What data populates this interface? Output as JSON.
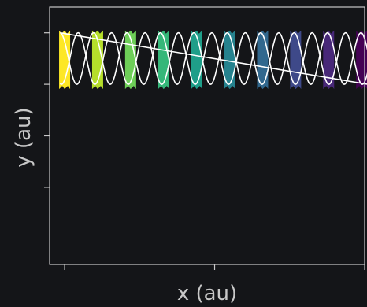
{
  "chart_data": {
    "type": "line",
    "title": "",
    "xlabel": "x (au)",
    "ylabel": "y (au)",
    "xlim": [
      -0.1,
      2.0
    ],
    "ylim": [
      -1.75,
      0.75
    ],
    "x_ticks": [
      0,
      1,
      2
    ],
    "y_ticks": [
      -1,
      -0.5,
      0,
      0.5
    ],
    "x_tick_labels": [
      "",
      "",
      ""
    ],
    "y_tick_labels": [
      "",
      "",
      "",
      ""
    ],
    "grid": false,
    "legend": "none",
    "colormap": [
      "#fde725",
      "#b5de2b",
      "#6ece58",
      "#35b779",
      "#1f9e89",
      "#26828e",
      "#31688e",
      "#3e4989",
      "#482878",
      "#440154"
    ],
    "line_color": "#ffffff",
    "background": "#141518",
    "axis_color": "#c8c8c8",
    "label_color": "#c8c8c8",
    "helix": {
      "turns": 9.2,
      "x_start": -0.03,
      "x_end": 2.02,
      "y_top": 0.5,
      "y_bottom": 0.0,
      "envelope_start_y": 0.5,
      "envelope_end_y": 0.0,
      "segments": [
        {
          "x_center": 0.0,
          "color": "#fde725"
        },
        {
          "x_center": 0.22,
          "color": "#b5de2b"
        },
        {
          "x_center": 0.44,
          "color": "#6ece58"
        },
        {
          "x_center": 0.66,
          "color": "#35b779"
        },
        {
          "x_center": 0.88,
          "color": "#1f9e89"
        },
        {
          "x_center": 1.1,
          "color": "#26828e"
        },
        {
          "x_center": 1.32,
          "color": "#31688e"
        },
        {
          "x_center": 1.54,
          "color": "#3e4989"
        },
        {
          "x_center": 1.76,
          "color": "#482878"
        },
        {
          "x_center": 1.98,
          "color": "#440154"
        }
      ]
    }
  }
}
